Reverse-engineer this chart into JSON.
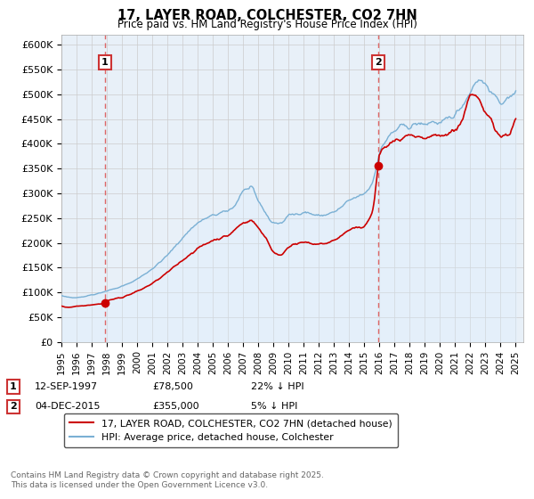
{
  "title": "17, LAYER ROAD, COLCHESTER, CO2 7HN",
  "subtitle": "Price paid vs. HM Land Registry's House Price Index (HPI)",
  "ylim": [
    0,
    620000
  ],
  "yticks": [
    0,
    50000,
    100000,
    150000,
    200000,
    250000,
    300000,
    350000,
    400000,
    450000,
    500000,
    550000,
    600000
  ],
  "ytick_labels": [
    "£0",
    "£50K",
    "£100K",
    "£150K",
    "£200K",
    "£250K",
    "£300K",
    "£350K",
    "£400K",
    "£450K",
    "£500K",
    "£550K",
    "£600K"
  ],
  "xlim_start": 1995.2,
  "xlim_end": 2025.5,
  "purchase1_x": 1997.88,
  "purchase1_y": 78500,
  "purchase2_x": 2015.92,
  "purchase2_y": 355000,
  "line_red_color": "#cc0000",
  "line_blue_color": "#7ab0d4",
  "fill_blue_color": "#ddeeff",
  "dashed_line_color": "#dd6666",
  "marker_color": "#cc0000",
  "legend_line1": "17, LAYER ROAD, COLCHESTER, CO2 7HN (detached house)",
  "legend_line2": "HPI: Average price, detached house, Colchester",
  "footer": "Contains HM Land Registry data © Crown copyright and database right 2025.\nThis data is licensed under the Open Government Licence v3.0.",
  "background_color": "#ffffff",
  "grid_color": "#cccccc",
  "plot_bg_color": "#e8f0f8"
}
